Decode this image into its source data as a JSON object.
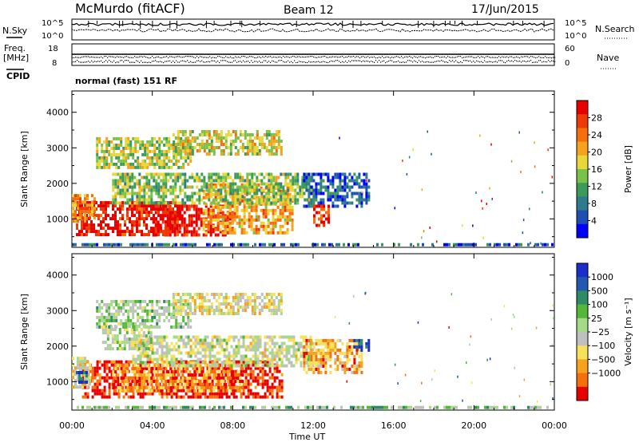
{
  "header": {
    "title": "McMurdo (fitACF)",
    "beam": "Beam 12",
    "date": "17/Jun/2015"
  },
  "top_strip": {
    "nsky_label": "N.Sky",
    "nsky_ticks": [
      "10^5",
      "10^0"
    ],
    "nsearch_label": "N.Search",
    "nsearch_ticks": [
      "10^5",
      "10^0"
    ],
    "freq_label_line1": "Freq.",
    "freq_label_line2": "[MHz]",
    "freq_ticks": [
      "18",
      "8"
    ],
    "nave_label": "Nave",
    "nave_ticks": [
      "60",
      "0"
    ],
    "cpid_label": "CPID",
    "cpid_text": "normal (fast) 151 RF"
  },
  "chart_data": [
    {
      "type": "heatmap",
      "panel": "power",
      "ylabel": "Slant Range [km]",
      "y_ticks": [
        1000,
        2000,
        3000,
        4000
      ],
      "ylim": [
        200,
        4600
      ],
      "xlim": [
        0,
        24
      ],
      "colorbar": {
        "label": "Power [dB]",
        "ticks": [
          "4",
          "8",
          "12",
          "16",
          "20",
          "24",
          "28"
        ],
        "range": [
          0,
          32
        ],
        "colors": [
          "#0000ff",
          "#1f4fb5",
          "#2f7a8c",
          "#3c9a5a",
          "#79c24a",
          "#e6d83a",
          "#f7a21c",
          "#f56f0d",
          "#ee3a06",
          "#e60000"
        ]
      },
      "regions": [
        {
          "t0": 0.2,
          "t1": 5.5,
          "r0": 500,
          "r1": 1500,
          "level": 0.93
        },
        {
          "t0": 4.0,
          "t1": 8.0,
          "r0": 500,
          "r1": 1400,
          "level": 0.97
        },
        {
          "t0": 0.0,
          "t1": 1.2,
          "r0": 900,
          "r1": 1700,
          "level": 0.7
        },
        {
          "t0": 6.5,
          "t1": 11.0,
          "r0": 600,
          "r1": 2000,
          "level": 0.65
        },
        {
          "t0": 2.0,
          "t1": 12.0,
          "r0": 1400,
          "r1": 2300,
          "level": 0.45
        },
        {
          "t0": 11.5,
          "t1": 14.8,
          "r0": 1300,
          "r1": 2300,
          "level": 0.2
        },
        {
          "t0": 12.0,
          "t1": 12.8,
          "r0": 800,
          "r1": 1400,
          "level": 0.9
        },
        {
          "t0": 1.2,
          "t1": 6.0,
          "r0": 2400,
          "r1": 3300,
          "level": 0.5
        },
        {
          "t0": 5.0,
          "t1": 10.5,
          "r0": 2800,
          "r1": 3500,
          "level": 0.55
        },
        {
          "t0": 0.0,
          "t1": 24.0,
          "r0": 220,
          "r1": 320,
          "level": 0.2
        }
      ]
    },
    {
      "type": "heatmap",
      "panel": "velocity",
      "ylabel": "Slant Range [km]",
      "xlabel": "Time UT",
      "x_ticks": [
        "00:00",
        "04:00",
        "08:00",
        "12:00",
        "16:00",
        "20:00",
        "00:00"
      ],
      "y_ticks": [
        1000,
        2000,
        3000,
        4000
      ],
      "ylim": [
        200,
        4600
      ],
      "xlim": [
        0,
        24
      ],
      "colorbar": {
        "label": "Velocity [m s⁻¹]",
        "ticks": [
          "1000",
          "500",
          "100",
          "25",
          "−25",
          "−100",
          "−500",
          "−1000"
        ],
        "colors": [
          "#1a2fc8",
          "#2458b0",
          "#2f8a66",
          "#54b73a",
          "#a6d98a",
          "#c0c0c0",
          "#f7e05a",
          "#f7a21c",
          "#f56f0d",
          "#e60000"
        ]
      },
      "regions": [
        {
          "t0": 0.5,
          "t1": 10.5,
          "r0": 500,
          "r1": 1600,
          "level": 0.95
        },
        {
          "t0": 2.0,
          "t1": 8.5,
          "r0": 700,
          "r1": 1500,
          "level": 0.78
        },
        {
          "t0": 0.0,
          "t1": 1.0,
          "r0": 800,
          "r1": 1700,
          "level": 0.6
        },
        {
          "t0": 0.2,
          "t1": 0.8,
          "r0": 900,
          "r1": 1300,
          "level": 0.1
        },
        {
          "t0": 3.0,
          "t1": 12.0,
          "r0": 1400,
          "r1": 2300,
          "level": 0.55
        },
        {
          "t0": 1.5,
          "t1": 4.0,
          "r0": 1900,
          "r1": 2600,
          "level": 0.5
        },
        {
          "t0": 11.5,
          "t1": 14.5,
          "r0": 1200,
          "r1": 2200,
          "level": 0.75
        },
        {
          "t0": 14.0,
          "t1": 14.8,
          "r0": 1800,
          "r1": 2200,
          "level": 0.1
        },
        {
          "t0": 1.2,
          "t1": 6.0,
          "r0": 2500,
          "r1": 3300,
          "level": 0.45
        },
        {
          "t0": 5.0,
          "t1": 10.5,
          "r0": 2900,
          "r1": 3500,
          "level": 0.6
        },
        {
          "t0": 0.0,
          "t1": 24.0,
          "r0": 220,
          "r1": 320,
          "level": 0.4
        }
      ]
    }
  ]
}
